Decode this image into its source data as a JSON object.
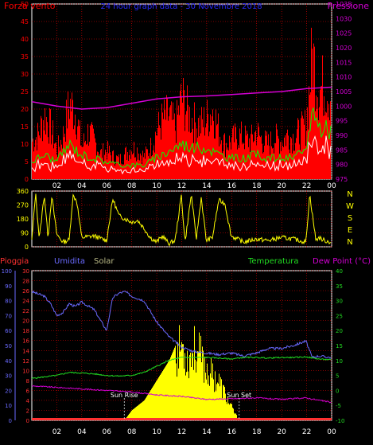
{
  "colors": {
    "wind": "#ff0000",
    "gust_fill": "#ff0000",
    "wind_green": "#00ff00",
    "wind_white": "#ffffff",
    "pressure": "#d400d4",
    "direction": "#ffff00",
    "rain": "#ff3030",
    "humidity": "#6a6aff",
    "solar": "#ffff00",
    "temperature": "#22dd22",
    "dew_point": "#d400d4",
    "grid": "#ff0000",
    "title": "#2a2aff",
    "frame": "#ffffff"
  },
  "chart_data": [
    {
      "type": "area",
      "title": "24 hour graph data - 30 Novembre 2018",
      "left_label": "Forza vento",
      "right_label": "Pressione",
      "x_ticks": [
        "02",
        "04",
        "06",
        "08",
        "10",
        "12",
        "14",
        "16",
        "18",
        "20",
        "22",
        "00"
      ],
      "y_left_ticks": [
        0,
        5,
        10,
        15,
        20,
        25,
        30,
        35,
        40,
        45,
        50
      ],
      "y_right_ticks": [
        975,
        980,
        985,
        990,
        995,
        1000,
        1005,
        1010,
        1015,
        1020,
        1025,
        1030,
        1035
      ],
      "ylim_left": [
        0,
        50
      ],
      "ylim_right": [
        975,
        1035
      ],
      "grid": true,
      "series": [
        {
          "name": "Forza vento",
          "kind": "gust",
          "hours": [
            0,
            0.5,
            1,
            1.5,
            2,
            2.5,
            3,
            3.5,
            4,
            4.5,
            5,
            5.5,
            6,
            6.5,
            7,
            7.5,
            8,
            8.5,
            9,
            9.5,
            10,
            10.5,
            11,
            11.5,
            12,
            12.5,
            13,
            13.5,
            14,
            14.5,
            15,
            15.5,
            16,
            16.5,
            17,
            17.5,
            18,
            18.5,
            19,
            19.5,
            20,
            20.5,
            21,
            21.5,
            22,
            22.5,
            23,
            23.5,
            24
          ],
          "values": [
            12,
            14,
            20,
            16,
            9,
            14,
            24,
            21,
            10,
            15,
            12,
            8,
            9,
            7,
            6,
            8,
            10,
            9,
            7,
            10,
            15,
            19,
            20,
            16,
            26,
            21,
            18,
            17,
            19,
            22,
            15,
            11,
            12,
            14,
            13,
            12,
            15,
            12,
            11,
            13,
            12,
            14,
            13,
            15,
            17,
            40,
            28,
            30,
            26
          ]
        },
        {
          "name": "",
          "kind": "average",
          "hours": [
            0,
            1,
            2,
            3,
            4,
            5,
            6,
            7,
            8,
            9,
            10,
            11,
            12,
            13,
            14,
            15,
            16,
            17,
            18,
            19,
            20,
            21,
            22,
            22.5,
            23,
            24
          ],
          "values": [
            5,
            7,
            5,
            10,
            7,
            6,
            5,
            4,
            4,
            4,
            6,
            8,
            10,
            9,
            9,
            7,
            6,
            6,
            7,
            6,
            6,
            6,
            8,
            20,
            15,
            14
          ]
        },
        {
          "name": "Pressione",
          "kind": "pressure",
          "hours": [
            0,
            2,
            4,
            6,
            8,
            10,
            12,
            14,
            16,
            18,
            20,
            22,
            24
          ],
          "values": [
            1001.5,
            1000,
            999,
            999.5,
            1001,
            1002.5,
            1003.2,
            1003.5,
            1004,
            1004.5,
            1005,
            1006,
            1006.5
          ]
        }
      ]
    },
    {
      "type": "line",
      "right_label": "N W S E N",
      "x_ticks": [
        "02",
        "04",
        "06",
        "08",
        "10",
        "12",
        "14",
        "16",
        "18",
        "20",
        "22",
        "00"
      ],
      "y_ticks": [
        0,
        90,
        180,
        270,
        360
      ],
      "ylim": [
        0,
        360
      ],
      "series": [
        {
          "name": "",
          "hours": [
            0,
            0.3,
            0.6,
            1,
            1.3,
            1.6,
            2,
            2.5,
            3,
            3.3,
            3.6,
            4,
            5,
            6,
            6.5,
            7,
            7.5,
            8,
            8.5,
            9,
            9.5,
            10,
            10.5,
            11,
            11.5,
            12,
            12.3,
            12.8,
            13.2,
            13.6,
            14,
            14.5,
            15,
            15.5,
            16,
            17,
            18,
            19,
            20,
            21,
            22,
            22.3,
            22.8,
            23,
            23.5,
            24
          ],
          "values": [
            40,
            350,
            50,
            340,
            60,
            330,
            80,
            30,
            45,
            330,
            300,
            60,
            70,
            40,
            310,
            200,
            180,
            160,
            170,
            120,
            60,
            30,
            70,
            20,
            40,
            330,
            30,
            340,
            50,
            320,
            40,
            60,
            300,
            280,
            70,
            30,
            50,
            40,
            60,
            50,
            30,
            340,
            40,
            60,
            40,
            30
          ]
        }
      ]
    },
    {
      "type": "line",
      "legend": [
        "Pioggia",
        "Umidita",
        "Solar",
        "Temperatura",
        "Dew Point (°C)"
      ],
      "x_ticks": [
        "02",
        "04",
        "06",
        "08",
        "10",
        "12",
        "14",
        "16",
        "18",
        "20",
        "22",
        "00"
      ],
      "y_left_outer_ticks": [
        0,
        10,
        20,
        30,
        40,
        50,
        60,
        70,
        80,
        90,
        100
      ],
      "y_left_inner_ticks": [
        0,
        2,
        4,
        6,
        8,
        10,
        12,
        14,
        16,
        18,
        20,
        22,
        24,
        26,
        28,
        30
      ],
      "y_right_ticks": [
        -10,
        -5,
        0,
        5,
        10,
        15,
        20,
        25,
        30,
        35,
        40
      ],
      "ylim_humidity": [
        0,
        100
      ],
      "ylim_rain": [
        0,
        30
      ],
      "ylim_temp": [
        -10,
        40
      ],
      "annotations": [
        {
          "text": "Sun Rise",
          "hour": 7.4
        },
        {
          "text": "Sun Set",
          "hour": 16.6
        }
      ],
      "series": [
        {
          "name": "Umidita",
          "hours": [
            0,
            1,
            1.5,
            2,
            2.5,
            3,
            3.5,
            4,
            5,
            6,
            6.5,
            7,
            7.5,
            8,
            9,
            10,
            11,
            12,
            13,
            14,
            15,
            16,
            17,
            18,
            19,
            20,
            21,
            22,
            22.5,
            23,
            24
          ],
          "values": [
            86,
            83,
            78,
            70,
            72,
            78,
            76,
            79,
            74,
            60,
            82,
            85,
            86,
            83,
            80,
            66,
            56,
            49,
            46,
            45,
            44,
            45,
            43,
            45,
            48,
            48,
            50,
            53,
            42,
            43,
            42
          ]
        },
        {
          "name": "Temperatura",
          "hours": [
            0,
            1,
            2,
            3,
            4,
            5,
            6,
            7,
            8,
            9,
            10,
            11,
            12,
            13,
            14,
            15,
            16,
            17,
            18,
            19,
            20,
            21,
            22,
            23,
            24
          ],
          "values": [
            4,
            4.5,
            5,
            6,
            5.8,
            5.5,
            5,
            4.8,
            5,
            6,
            8,
            10,
            11,
            11,
            11,
            10.8,
            10.5,
            11,
            11,
            10.8,
            11,
            11,
            11.2,
            10.5,
            10.2
          ]
        },
        {
          "name": "Dew Point (°C)",
          "hours": [
            0,
            2,
            4,
            6,
            8,
            10,
            12,
            14,
            16,
            18,
            20,
            22,
            24
          ],
          "values": [
            1.5,
            1,
            0.5,
            0,
            -0.5,
            -1.5,
            -2,
            -3,
            -2.8,
            -2.5,
            -3,
            -2.5,
            -4
          ]
        },
        {
          "name": "Solar",
          "hours": [
            7.4,
            8,
            9,
            10,
            11,
            12,
            12.5,
            13,
            13.5,
            14,
            15,
            16,
            16.6
          ],
          "values": [
            0,
            2,
            4,
            8,
            12,
            18,
            14,
            17,
            15,
            12,
            9,
            3,
            0
          ]
        },
        {
          "name": "Pioggia",
          "hours": [
            0,
            24
          ],
          "values": [
            0,
            0
          ]
        }
      ]
    }
  ]
}
